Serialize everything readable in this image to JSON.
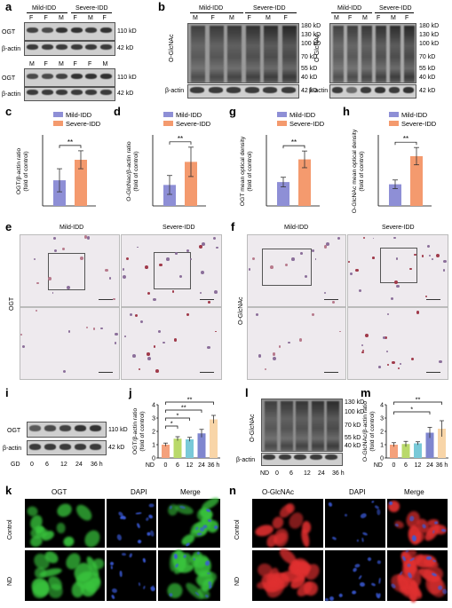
{
  "panel_letters": {
    "a": "a",
    "b": "b",
    "c": "c",
    "d": "d",
    "e": "e",
    "f": "f",
    "g": "g",
    "h": "h",
    "i": "i",
    "j": "j",
    "k": "k",
    "l": "l",
    "m": "m",
    "n": "n"
  },
  "groups": {
    "mild": "Mild-IDD",
    "severe": "Severe-IDD"
  },
  "sex_labels_row1": [
    "F",
    "F",
    "M",
    "F",
    "M",
    "F"
  ],
  "sex_labels_row2": [
    "M",
    "F",
    "M",
    "F",
    "F",
    "M"
  ],
  "sex_labels_b": [
    "M",
    "F",
    "M",
    "F",
    "M",
    "F"
  ],
  "proteins": {
    "ogt": "OGT",
    "actin": "β-actin",
    "oglcnac": "O-GlcNAc"
  },
  "mw": {
    "kd110": "110 kD",
    "kd42": "42 kD",
    "kd180": "180 kD",
    "kd130": "130 kD",
    "kd100": "100 kD",
    "kd70": "70 kD",
    "kd55": "55 kD",
    "kd40": "40 kD"
  },
  "ihc": {
    "mild": "Mild-IDD",
    "severe": "Severe-IDD",
    "ogt": "OGT",
    "oglcnac": "O-GlcNAc"
  },
  "time_i": {
    "gd": "GD",
    "points": [
      "0",
      "6",
      "12",
      "24",
      "36 h"
    ]
  },
  "fluor_k": {
    "c1": "OGT",
    "c2": "DAPI",
    "c3": "Merge",
    "rows": [
      "Control",
      "ND"
    ],
    "c1_color": "#39c43d",
    "c2_color": "#3b5bd9",
    "c3_color": "#e0b020"
  },
  "fluor_n": {
    "c1": "O-GlcNAc",
    "c2": "DAPI",
    "c3": "Merge",
    "rows": [
      "Control",
      "ND"
    ],
    "c1_color": "#e03030",
    "c2_color": "#3b5bd9",
    "c3_color": "#e0b020"
  },
  "chart_data": [
    {
      "panel": "c",
      "type": "bar",
      "categories": [
        "Mild-IDD",
        "Severe-IDD"
      ],
      "values": [
        1.0,
        1.8
      ],
      "errors": [
        0.45,
        0.35
      ],
      "ylabel": "OGT/β-actin ratio\n(fold of control)",
      "significance": "**",
      "colors": [
        "#8e8fd6",
        "#f49a6e"
      ]
    },
    {
      "panel": "d",
      "type": "bar",
      "categories": [
        "Mild-IDD",
        "Severe-IDD"
      ],
      "values": [
        1.0,
        2.1
      ],
      "errors": [
        0.45,
        0.7
      ],
      "ylabel": "O-GlcNac/β-actin ratio\n(fold of control)",
      "significance": "**",
      "colors": [
        "#8e8fd6",
        "#f49a6e"
      ]
    },
    {
      "panel": "g",
      "type": "bar",
      "categories": [
        "Mild-IDD",
        "Severe-IDD"
      ],
      "values": [
        1.0,
        1.95
      ],
      "errors": [
        0.2,
        0.35
      ],
      "ylabel": "OGT mean optical density\n(fold of control)",
      "significance": "**",
      "colors": [
        "#8e8fd6",
        "#f49a6e"
      ]
    },
    {
      "panel": "h",
      "type": "bar",
      "categories": [
        "Mild-IDD",
        "Severe-IDD"
      ],
      "values": [
        1.0,
        2.3
      ],
      "errors": [
        0.2,
        0.4
      ],
      "ylabel": "O-GlcNAc mean optical density\n(fold of control)",
      "significance": "**",
      "colors": [
        "#8e8fd6",
        "#f49a6e"
      ]
    },
    {
      "panel": "j",
      "type": "bar",
      "categories": [
        "0",
        "6",
        "12",
        "24",
        "36 h"
      ],
      "xlabel_prefix": "ND",
      "values": [
        1.0,
        1.45,
        1.4,
        1.85,
        2.9
      ],
      "errors": [
        0.12,
        0.15,
        0.15,
        0.3,
        0.3
      ],
      "ylabel": "OGT/β-actin ratio\n(fold of control)",
      "ylim": [
        0,
        4
      ],
      "yticks": [
        0,
        1,
        2,
        3,
        4
      ],
      "significance": [
        "*",
        "*",
        "**",
        "**"
      ],
      "colors": [
        "#f4a17c",
        "#b9d96a",
        "#79c9d8",
        "#7f86cf",
        "#f8d5a8"
      ]
    },
    {
      "panel": "m",
      "type": "bar",
      "categories": [
        "0",
        "6",
        "12",
        "24",
        "36 h"
      ],
      "xlabel_prefix": "ND",
      "values": [
        1.0,
        1.05,
        1.1,
        1.9,
        2.2
      ],
      "errors": [
        0.15,
        0.2,
        0.12,
        0.4,
        0.6
      ],
      "ylabel": "O-GlcNAc/β-actin ratio\n(fold of control)",
      "ylim": [
        0,
        4
      ],
      "yticks": [
        0,
        1,
        2,
        3,
        4
      ],
      "significance": [
        "*",
        "**"
      ],
      "colors": [
        "#f4a17c",
        "#b9d96a",
        "#79c9d8",
        "#7f86cf",
        "#f8d5a8"
      ]
    }
  ]
}
